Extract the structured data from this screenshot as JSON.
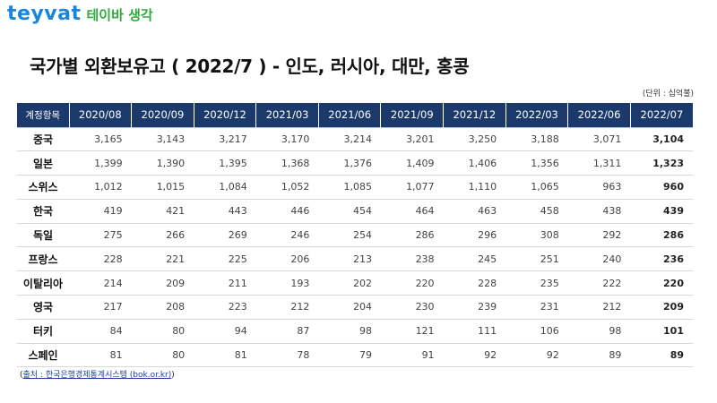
{
  "brand": {
    "logo": "teyvat",
    "subtitle": "테이바 생각"
  },
  "title": "국가별 외환보유고 ( 2022/7 ) - 인도, 러시아, 대만, 홍콩",
  "unit": "(단위 : 십억불)",
  "table": {
    "corner": "계정항목",
    "columns": [
      "2020/08",
      "2020/09",
      "2020/12",
      "2021/03",
      "2021/06",
      "2021/09",
      "2021/12",
      "2022/03",
      "2022/06",
      "2022/07"
    ],
    "rows": [
      {
        "country": "중국",
        "values": [
          "3,165",
          "3,143",
          "3,217",
          "3,170",
          "3,214",
          "3,201",
          "3,250",
          "3,188",
          "3,071",
          "3,104"
        ]
      },
      {
        "country": "일본",
        "values": [
          "1,399",
          "1,390",
          "1,395",
          "1,368",
          "1,376",
          "1,409",
          "1,406",
          "1,356",
          "1,311",
          "1,323"
        ]
      },
      {
        "country": "스위스",
        "values": [
          "1,012",
          "1,015",
          "1,084",
          "1,052",
          "1,085",
          "1,077",
          "1,110",
          "1,065",
          "963",
          "960"
        ]
      },
      {
        "country": "한국",
        "values": [
          "419",
          "421",
          "443",
          "446",
          "454",
          "464",
          "463",
          "458",
          "438",
          "439"
        ]
      },
      {
        "country": "독일",
        "values": [
          "275",
          "266",
          "269",
          "246",
          "254",
          "286",
          "296",
          "308",
          "292",
          "286"
        ]
      },
      {
        "country": "프랑스",
        "values": [
          "228",
          "221",
          "225",
          "206",
          "213",
          "238",
          "245",
          "251",
          "240",
          "236"
        ]
      },
      {
        "country": "이탈리아",
        "values": [
          "214",
          "209",
          "211",
          "193",
          "202",
          "220",
          "228",
          "235",
          "222",
          "220"
        ]
      },
      {
        "country": "영국",
        "values": [
          "217",
          "208",
          "223",
          "212",
          "204",
          "230",
          "239",
          "231",
          "212",
          "209"
        ]
      },
      {
        "country": "터키",
        "values": [
          "84",
          "80",
          "94",
          "87",
          "98",
          "121",
          "111",
          "106",
          "98",
          "101"
        ]
      },
      {
        "country": "스페인",
        "values": [
          "81",
          "80",
          "81",
          "78",
          "79",
          "91",
          "92",
          "92",
          "89",
          "89"
        ]
      }
    ]
  },
  "source": {
    "open": "(",
    "text": "출처 : 한국은행경제통계시스템 (bok.or.kr)",
    "close": ")"
  }
}
